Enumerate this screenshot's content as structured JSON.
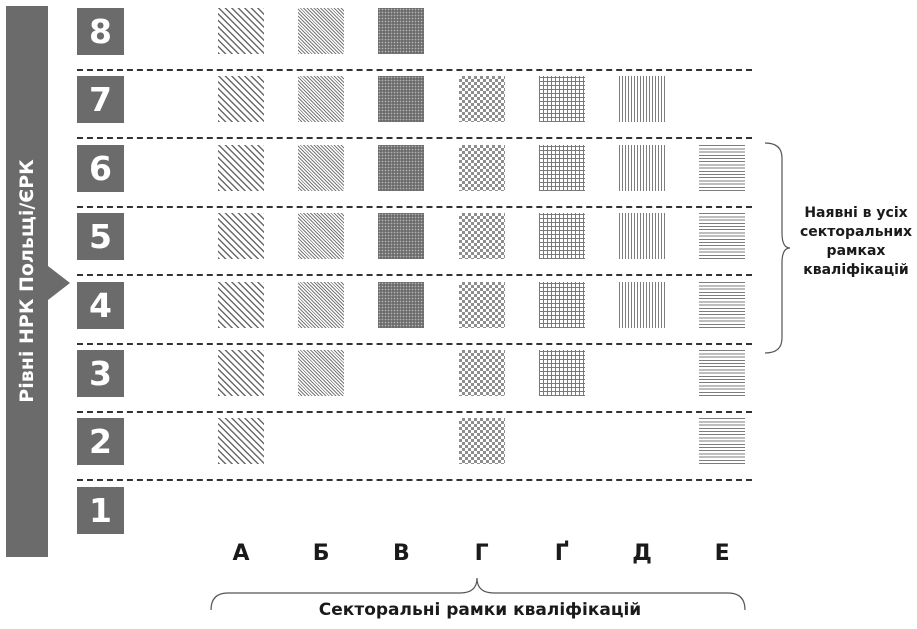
{
  "side_label": "Рівні НРК Польщі/ЄРК",
  "levels": [
    "8",
    "7",
    "6",
    "5",
    "4",
    "3",
    "2",
    "1"
  ],
  "columns": [
    "А",
    "Б",
    "В",
    "Г",
    "Ґ",
    "Д",
    "Е"
  ],
  "presence": {
    "8": [
      "А",
      "Б",
      "В"
    ],
    "7": [
      "А",
      "Б",
      "В",
      "Г",
      "Ґ",
      "Д"
    ],
    "6": [
      "А",
      "Б",
      "В",
      "Г",
      "Ґ",
      "Д",
      "Е"
    ],
    "5": [
      "А",
      "Б",
      "В",
      "Г",
      "Ґ",
      "Д",
      "Е"
    ],
    "4": [
      "А",
      "Б",
      "В",
      "Г",
      "Ґ",
      "Д",
      "Е"
    ],
    "3": [
      "А",
      "Б",
      "Г",
      "Ґ",
      "Е"
    ],
    "2": [
      "А",
      "Г",
      "Е"
    ],
    "1": []
  },
  "column_patterns": {
    "А": "diagonal-wide",
    "Б": "diagonal-fine",
    "В": "dark-dotted",
    "Г": "checkerboard",
    "Ґ": "grid",
    "Д": "vertical-lines",
    "Е": "horizontal-lines"
  },
  "right_bracket_label": [
    "Наявні в усіх",
    "секторальних",
    "рамках",
    "кваліфікацій"
  ],
  "bottom_bracket_label": "Секторальні рамки кваліфікацій"
}
